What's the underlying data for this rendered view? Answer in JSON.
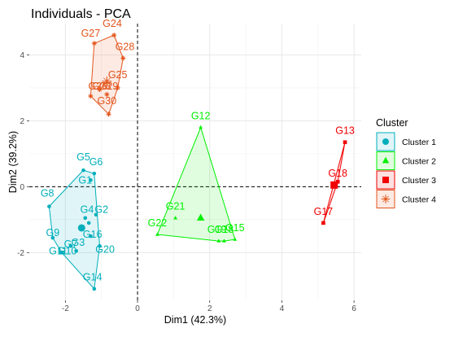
{
  "chart_data": {
    "type": "scatter",
    "title": "Individuals - PCA",
    "xlabel": "Dim1 (42.3%)",
    "ylabel": "Dim2 (39.2%)",
    "xlim": [
      -3.0,
      6.2
    ],
    "ylim": [
      -3.45,
      4.95
    ],
    "xticks": [
      -2,
      0,
      2,
      4,
      6
    ],
    "yticks": [
      -2,
      0,
      2,
      4
    ],
    "grid": true,
    "legend_title": "Cluster",
    "legend_position": "right",
    "series": [
      {
        "name": "Cluster 1",
        "color": "#00AFBB",
        "marker": "circle",
        "centroid": [
          -1.55,
          -1.25
        ],
        "points": [
          {
            "label": "G1",
            "x": -1.3,
            "y": 0.2
          },
          {
            "label": "G2",
            "x": -1.15,
            "y": -0.85
          },
          {
            "label": "G3",
            "x": -1.85,
            "y": -1.8
          },
          {
            "label": "G4",
            "x": -1.45,
            "y": -0.95
          },
          {
            "label": "G5",
            "x": -1.5,
            "y": 0.5
          },
          {
            "label": "G6",
            "x": -1.2,
            "y": 0.4
          },
          {
            "label": "G7",
            "x": -1.35,
            "y": -1.1
          },
          {
            "label": "G8",
            "x": -2.45,
            "y": -0.6
          },
          {
            "label": "G9",
            "x": -2.35,
            "y": -1.55
          },
          {
            "label": "G10",
            "x": -1.7,
            "y": -1.95
          },
          {
            "label": "G11",
            "x": -2.1,
            "y": -2.0
          },
          {
            "label": "G14",
            "x": -1.2,
            "y": -3.1
          },
          {
            "label": "G16",
            "x": -1.3,
            "y": -1.5
          },
          {
            "label": "G20",
            "x": -1.05,
            "y": -1.8
          }
        ]
      },
      {
        "name": "Cluster 2",
        "color": "#00F000",
        "marker": "triangle",
        "centroid": [
          1.75,
          -0.95
        ],
        "points": [
          {
            "label": "G12",
            "x": 1.75,
            "y": 1.8
          },
          {
            "label": "G15",
            "x": 2.7,
            "y": -1.6
          },
          {
            "label": "G18",
            "x": 2.4,
            "y": -1.65
          },
          {
            "label": "G19",
            "x": 2.25,
            "y": -1.65
          },
          {
            "label": "G21",
            "x": 1.05,
            "y": -0.95
          },
          {
            "label": "G22",
            "x": 0.55,
            "y": -1.45
          }
        ]
      },
      {
        "name": "Cluster 3",
        "color": "#F20000",
        "marker": "square",
        "centroid": [
          5.45,
          0.05
        ],
        "points": [
          {
            "label": "G13",
            "x": 5.75,
            "y": 1.35
          },
          {
            "label": "G17",
            "x": 5.15,
            "y": -1.1
          },
          {
            "label": "G18",
            "x": 5.55,
            "y": 0.15
          }
        ]
      },
      {
        "name": "Cluster 4",
        "color": "#E3541B",
        "marker": "star",
        "centroid": [
          -0.85,
          3.2
        ],
        "points": [
          {
            "label": "G23",
            "x": -1.05,
            "y": 2.95
          },
          {
            "label": "G24",
            "x": -0.65,
            "y": 4.6
          },
          {
            "label": "G25",
            "x": -0.55,
            "y": 3.0
          },
          {
            "label": "G26",
            "x": -1.3,
            "y": 2.75
          },
          {
            "label": "G27",
            "x": -1.2,
            "y": 4.35
          },
          {
            "label": "G28",
            "x": -0.4,
            "y": 3.9
          },
          {
            "label": "G29",
            "x": -0.85,
            "y": 2.8
          },
          {
            "label": "G30",
            "x": -0.8,
            "y": 2.2
          }
        ]
      }
    ],
    "labels_drawn": [
      {
        "text": "G27",
        "x": -1.3,
        "y": 4.55,
        "series": 3
      },
      {
        "text": "G24",
        "x": -0.7,
        "y": 4.85,
        "series": 3
      },
      {
        "text": "G28",
        "x": -0.35,
        "y": 4.15,
        "series": 3
      },
      {
        "text": "G25",
        "x": -0.55,
        "y": 3.3,
        "series": 3
      },
      {
        "text": "G23",
        "x": -1.0,
        "y": 2.95,
        "series": 3
      },
      {
        "text": "G29",
        "x": -0.8,
        "y": 2.95,
        "series": 3
      },
      {
        "text": "G26",
        "x": -1.1,
        "y": 2.95,
        "series": 3
      },
      {
        "text": "G30",
        "x": -0.85,
        "y": 2.5,
        "series": 3
      },
      {
        "text": "G12",
        "x": 1.75,
        "y": 2.05,
        "series": 1
      },
      {
        "text": "G21",
        "x": 1.05,
        "y": -0.7,
        "series": 1
      },
      {
        "text": "G22",
        "x": 0.55,
        "y": -1.2,
        "series": 1
      },
      {
        "text": "G19",
        "x": 2.2,
        "y": -1.4,
        "series": 1
      },
      {
        "text": "G18",
        "x": 2.4,
        "y": -1.4,
        "series": 1
      },
      {
        "text": "G15",
        "x": 2.7,
        "y": -1.35,
        "series": 1
      },
      {
        "text": "G13",
        "x": 5.75,
        "y": 1.6,
        "series": 2
      },
      {
        "text": "G18",
        "x": 5.55,
        "y": 0.3,
        "series": 2
      },
      {
        "text": "G17",
        "x": 5.15,
        "y": -0.85,
        "series": 2
      },
      {
        "text": "G5",
        "x": -1.5,
        "y": 0.8,
        "series": 0
      },
      {
        "text": "G6",
        "x": -1.15,
        "y": 0.65,
        "series": 0
      },
      {
        "text": "G1",
        "x": -1.45,
        "y": 0.1,
        "series": 0
      },
      {
        "text": "G8",
        "x": -2.5,
        "y": -0.3,
        "series": 0
      },
      {
        "text": "G4",
        "x": -1.4,
        "y": -0.8,
        "series": 0
      },
      {
        "text": "G2",
        "x": -1.0,
        "y": -0.8,
        "series": 0
      },
      {
        "text": "G9",
        "x": -2.35,
        "y": -1.5,
        "series": 0
      },
      {
        "text": "G16",
        "x": -1.25,
        "y": -1.55,
        "series": 0
      },
      {
        "text": "G3",
        "x": -1.65,
        "y": -1.8,
        "series": 0
      },
      {
        "text": "G7",
        "x": -1.85,
        "y": -1.85,
        "series": 0
      },
      {
        "text": "G10",
        "x": -1.95,
        "y": -2.05,
        "series": 0
      },
      {
        "text": "G11",
        "x": -2.2,
        "y": -2.05,
        "series": 0
      },
      {
        "text": "G20",
        "x": -0.9,
        "y": -2.0,
        "series": 0
      },
      {
        "text": "G14",
        "x": -1.25,
        "y": -2.85,
        "series": 0
      }
    ]
  }
}
